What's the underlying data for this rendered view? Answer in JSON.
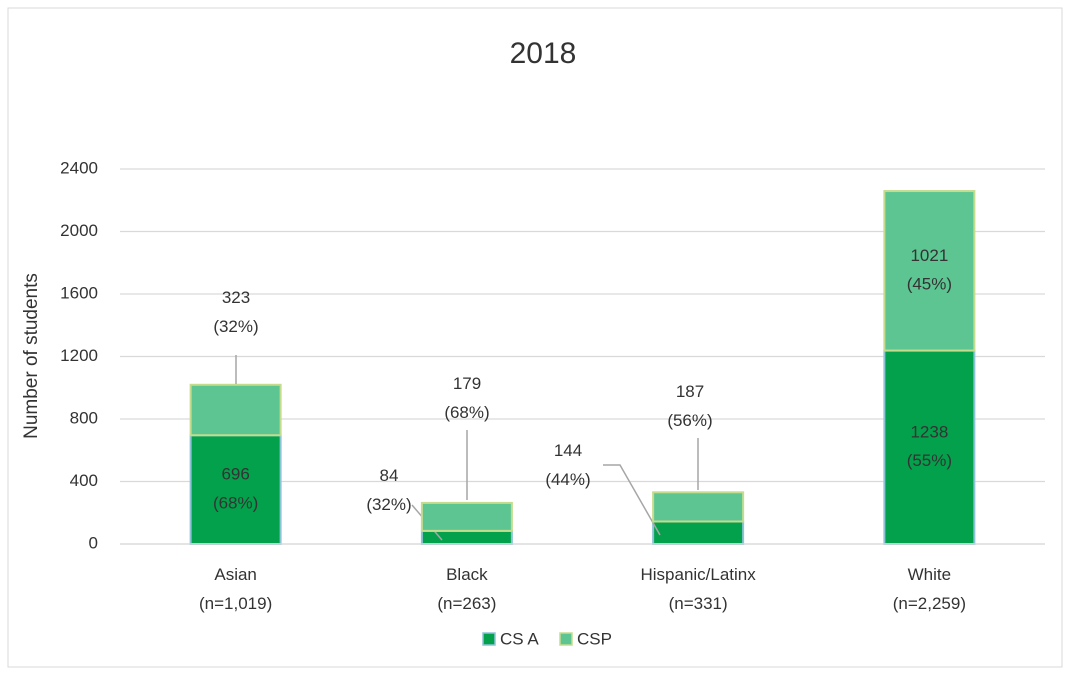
{
  "chart_data": {
    "type": "stacked_bar",
    "title": "2018",
    "y_label": "Number of students",
    "categories": [
      "Asian\n(n=1,019)",
      "Black\n(n=263)",
      "Hispanic/Latinx\n(n=331)",
      "White\n(n=2,259)"
    ],
    "series": [
      {
        "name": "CS A",
        "color": "#03a14c",
        "values": [
          696,
          84,
          144,
          1238
        ],
        "value_labels": [
          "696\n(68%)",
          "84\n(32%)",
          "144\n(44%)",
          "1238\n(55%)"
        ]
      },
      {
        "name": "CSP",
        "color": "#5dc592",
        "values": [
          323,
          179,
          187,
          1021
        ],
        "value_labels": [
          "323\n(32%)",
          "179\n(68%)",
          "187\n(56%)",
          "1021\n(45%)"
        ]
      }
    ],
    "ylim": [
      0,
      2400
    ],
    "yticks": [
      0,
      400,
      800,
      1200,
      1600,
      2000,
      2400
    ],
    "grid": true,
    "legend": "bottom"
  }
}
